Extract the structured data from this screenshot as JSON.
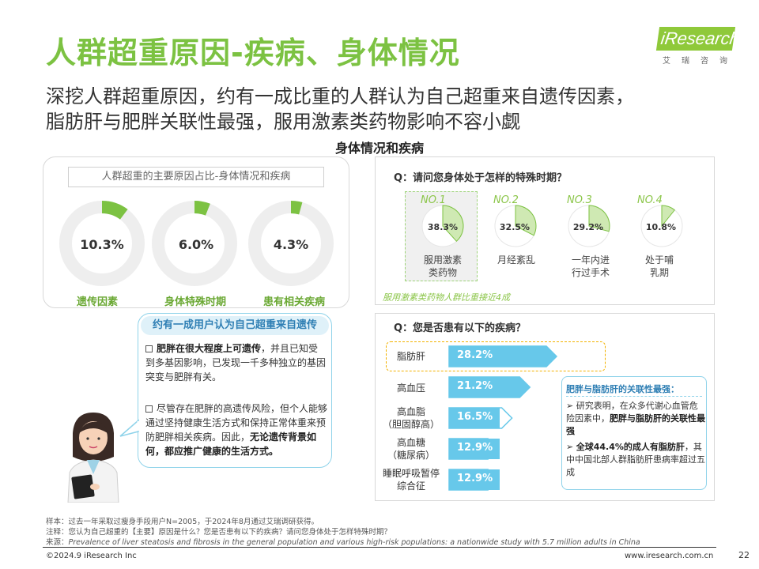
{
  "title": "人群超重原因-疾病、身体情况",
  "subtitle_lines": [
    "深挖人群超重原因，约有一成比重的人群认为自己超重来自遗传因素，",
    "脂肪肝与肥胖关联性最强，服用激素类药物影响不容小觑"
  ],
  "section_title": "身体情况和疾病",
  "logo": {
    "text": "iResearch",
    "sub": "艾瑞咨询"
  },
  "left_card": {
    "title": "人群超重的主要原因占比-身体情况和疾病",
    "donuts": [
      {
        "label": "遗传因素",
        "value": "10.3%",
        "pct": 10.3
      },
      {
        "label": "身体特殊时期",
        "value": "6.0%",
        "pct": 6.0
      },
      {
        "label": "患有相关疾病",
        "value": "4.3%",
        "pct": 4.3
      }
    ]
  },
  "bubble": {
    "heading": "约有一成用户认为自己超重来自遗传",
    "para1_bold": "肥胖在很大程度上可遗传",
    "para1_rest": "，并且已知受到多基因影响，已发现一千多种独立的基因突变与肥胖有关。",
    "para2_start": "尽管存在肥胖的高遗传风险，但个人能够通过坚持健康生活方式和保持正常体重来预防肥胖相关疾病。因此，",
    "para2_bold": "无论遗传背景如何，都应推广健康的生活方式。"
  },
  "special_period": {
    "question": "Q：请问您身体处于怎样的特殊时期？",
    "items": [
      {
        "no": "NO.1",
        "value": "38.3%",
        "pct": 38.3,
        "label": [
          "服用激素",
          "类药物"
        ]
      },
      {
        "no": "NO.2",
        "value": "32.5%",
        "pct": 32.5,
        "label": [
          "月经紊乱"
        ]
      },
      {
        "no": "NO.3",
        "value": "29.2%",
        "pct": 29.2,
        "label": [
          "一年内进",
          "行过手术"
        ]
      },
      {
        "no": "NO.4",
        "value": "10.8%",
        "pct": 10.8,
        "label": [
          "处于哺",
          "乳期"
        ]
      }
    ],
    "note": "服用激素类药物人群比重接近4成"
  },
  "disease": {
    "question": "Q：您是否患有以下的疾病？",
    "items": [
      {
        "label": [
          "脂肪肝"
        ],
        "value": "28.2%",
        "pct": 28.2
      },
      {
        "label": [
          "高血压"
        ],
        "value": "21.2%",
        "pct": 21.2
      },
      {
        "label": [
          "高血脂",
          "（胆固醇高）"
        ],
        "value": "16.5%",
        "pct": 16.5
      },
      {
        "label": [
          "高血糖",
          "（糖尿病）"
        ],
        "value": "12.9%",
        "pct": 12.9
      },
      {
        "label": [
          "睡眠呼吸暂停",
          "综合征"
        ],
        "value": "12.9%",
        "pct": 12.9
      }
    ],
    "info": {
      "heading": "肥胖与脂肪肝的关联性最强：",
      "item1_start": "研究表明，在众多代谢心血管危险因素中，",
      "item1_bold": "肥胖与脂肪肝的关联性最强",
      "item2_bold": "全球44.4%的成人有脂肪肝",
      "item2_rest": "，其中中国北部人群脂肪肝患病率超过五成"
    }
  },
  "footer": {
    "sample": "样本：过去一年采取过瘦身手段用户N=2005，于2024年8月通过艾瑞调研获得。",
    "notes": "注释：您认为自己超重的【主要】原因是什么？您是否患有以下的疾病？请问您身体处于怎样特殊时期？",
    "source_label": "来源：",
    "source": "Prevalence of liver steatosis and fibrosis in the general population and various high-risk populations: a nationwide study with 5.7 million adults in China",
    "copyright": "©2024.9 iResearch Inc",
    "website": "www.iresearch.com.cn",
    "page": "22"
  },
  "colors": {
    "green": "#7cc242",
    "blue": "#67c8ea",
    "yellow": "#f2b200",
    "ring_bg": "#eeeeee"
  }
}
